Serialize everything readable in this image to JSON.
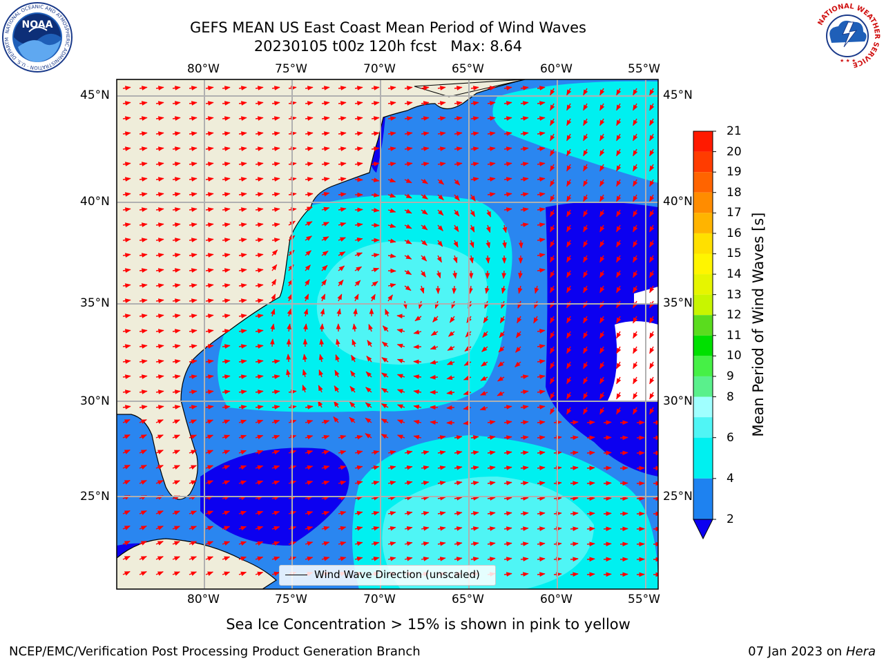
{
  "title": {
    "line1": "GEFS MEAN US East Coast Mean Period of Wind Waves",
    "line2": "20230105 t00z 120h fcst   Max: 8.64"
  },
  "map": {
    "lon_ticks": [
      "80°W",
      "75°W",
      "70°W",
      "65°W",
      "60°W",
      "55°W"
    ],
    "lat_ticks": [
      "45°N",
      "40°N",
      "35°N",
      "30°N",
      "25°N"
    ],
    "lon_range": [
      -85,
      -54.3
    ],
    "lat_range": [
      20.5,
      45.9
    ],
    "gridlines": true,
    "legend": "Wind Wave Direction (unscaled)",
    "legend_position": "bottom-center",
    "colors": {
      "land": "#efedda",
      "ocean_2_4": "#2a86f0",
      "ocean_4_6": "#00f0f0",
      "ocean_6_8": "#4ff5f5",
      "ocean_lt_2": "#0c00f0",
      "arrows": "#ff0000",
      "gridline": "#b0b0b0"
    }
  },
  "colorbar": {
    "label": "Mean Period of Wind Waves [s]",
    "ticks": [
      "21",
      "20",
      "19",
      "18",
      "17",
      "16",
      "15",
      "14",
      "13",
      "12",
      "11",
      "10",
      "9",
      "8",
      "6",
      "4",
      "2"
    ],
    "extend": "min",
    "levels": [
      {
        "from": 20,
        "to": 21,
        "color": "#ff1a00"
      },
      {
        "from": 19,
        "to": 20,
        "color": "#ff3c00"
      },
      {
        "from": 18,
        "to": 19,
        "color": "#ff6400"
      },
      {
        "from": 17,
        "to": 18,
        "color": "#ff8c00"
      },
      {
        "from": 16,
        "to": 17,
        "color": "#ffb400"
      },
      {
        "from": 15,
        "to": 16,
        "color": "#ffe000"
      },
      {
        "from": 14,
        "to": 15,
        "color": "#fff500"
      },
      {
        "from": 13,
        "to": 14,
        "color": "#e6f500"
      },
      {
        "from": 12,
        "to": 13,
        "color": "#c8f500"
      },
      {
        "from": 11,
        "to": 12,
        "color": "#5adc1e"
      },
      {
        "from": 10,
        "to": 11,
        "color": "#00e000"
      },
      {
        "from": 9,
        "to": 10,
        "color": "#46f046"
      },
      {
        "from": 8,
        "to": 9,
        "color": "#5af08c"
      },
      {
        "from": 7,
        "to": 8,
        "color": "#a0ffff"
      },
      {
        "from": 6,
        "to": 7,
        "color": "#50f5f5"
      },
      {
        "from": 4,
        "to": 6,
        "color": "#00f0f0"
      },
      {
        "from": 2,
        "to": 4,
        "color": "#1e82f0"
      }
    ],
    "under_color": "#0c00f0"
  },
  "subtitle": "Sea Ice Concentration > 15% is shown in pink to yellow",
  "footer": {
    "left": "NCEP/EMC/Verification Post Processing Product Generation Branch",
    "right_date": "07 Jan 2023 on ",
    "right_machine": "Hera"
  },
  "logos": {
    "left": "NOAA",
    "left_ring": "NATIONAL OCEANIC AND ATMOSPHERIC ADMINISTRATION · U.S. DEPARTMENT OF COMMERCE",
    "right_ring": "NATIONAL WEATHER SERVICE"
  }
}
